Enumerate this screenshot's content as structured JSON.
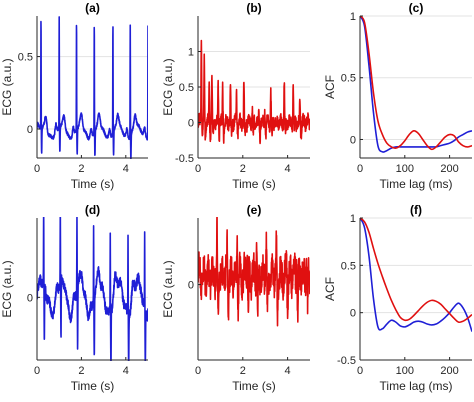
{
  "chart_data": [
    {
      "panel": "a",
      "type": "line",
      "title": "(a)",
      "xlabel": "Time (s)",
      "ylabel": "ECG (a.u.)",
      "xlim": [
        0,
        5
      ],
      "ylim": [
        -0.2,
        0.78
      ],
      "xticks": [
        0,
        2,
        4
      ],
      "xticklabels": [
        "0",
        "2",
        "4"
      ],
      "yticks": [
        0,
        0.5
      ],
      "yticklabels": [
        "0",
        "0.5"
      ],
      "grid": "horizontal",
      "series": [
        {
          "color": "#1f1fd6",
          "signal": "periodic-ecg",
          "beats": [
            0.18,
            1.0,
            1.78,
            2.58,
            3.42,
            4.2,
            5.0
          ],
          "peak": 0.78,
          "trough": -0.17,
          "baseline": -0.02,
          "noise": 0.015
        }
      ]
    },
    {
      "panel": "b",
      "type": "line",
      "title": "(b)",
      "xlabel": "Time (s)",
      "ylabel": "ECG (a.u.)",
      "xlim": [
        0,
        5
      ],
      "ylim": [
        -0.5,
        1.5
      ],
      "xticks": [
        0,
        2,
        4
      ],
      "xticklabels": [
        "0",
        "2",
        "4"
      ],
      "yticks": [
        -0.5,
        0,
        0.5,
        1
      ],
      "yticklabels": [
        "-0.5",
        "0",
        "0.5",
        "1"
      ],
      "grid": "horizontal",
      "series": [
        {
          "color": "#e01010",
          "signal": "irregular-spikes",
          "peaks": [
            [
              0.15,
              1.28
            ],
            [
              0.28,
              0.88
            ],
            [
              0.5,
              0.48
            ],
            [
              0.62,
              0.7
            ],
            [
              0.9,
              0.5
            ],
            [
              1.1,
              0.5
            ],
            [
              1.45,
              0.55
            ],
            [
              1.72,
              0.4
            ],
            [
              2.05,
              0.6
            ],
            [
              2.42,
              0.2
            ],
            [
              2.72,
              0.12
            ],
            [
              2.98,
              0.16
            ],
            [
              3.25,
              0.42
            ],
            [
              3.85,
              0.55
            ],
            [
              4.25,
              0.48
            ],
            [
              4.55,
              0.3
            ]
          ],
          "trough": -0.38,
          "baseline": 0.0,
          "noise": 0.06
        }
      ]
    },
    {
      "panel": "c",
      "type": "line",
      "title": "(c)",
      "xlabel": "Time lag (ms)",
      "ylabel": "ACF",
      "xlim": [
        0,
        250
      ],
      "ylim": [
        -0.15,
        1.0
      ],
      "xticks": [
        0,
        100,
        200
      ],
      "xticklabels": [
        "0",
        "100",
        "200"
      ],
      "yticks": [
        0,
        0.5,
        1
      ],
      "yticklabels": [
        "0",
        "0.5",
        "1"
      ],
      "grid": "horizontal",
      "series": [
        {
          "color": "#1f1fd6",
          "x": [
            0,
            10,
            20,
            30,
            40,
            50,
            60,
            70,
            80,
            90,
            100,
            110,
            120,
            130,
            140,
            150,
            160,
            170,
            180,
            190,
            200,
            210,
            220,
            230,
            240,
            250
          ],
          "y": [
            1.0,
            0.92,
            0.6,
            0.22,
            -0.05,
            -0.1,
            -0.09,
            -0.07,
            -0.06,
            -0.06,
            -0.06,
            -0.06,
            -0.06,
            -0.06,
            -0.06,
            -0.06,
            -0.06,
            -0.06,
            -0.05,
            -0.04,
            -0.03,
            -0.01,
            0.02,
            0.04,
            0.06,
            0.07
          ]
        },
        {
          "color": "#e01010",
          "x": [
            0,
            10,
            20,
            30,
            40,
            50,
            60,
            70,
            80,
            90,
            100,
            110,
            120,
            130,
            140,
            150,
            160,
            170,
            180,
            190,
            200,
            210,
            220,
            230,
            240,
            250
          ],
          "y": [
            1.0,
            0.95,
            0.7,
            0.38,
            0.15,
            0.04,
            -0.03,
            -0.06,
            -0.07,
            -0.05,
            -0.01,
            0.04,
            0.07,
            0.05,
            0.0,
            -0.05,
            -0.08,
            -0.06,
            -0.02,
            0.02,
            0.04,
            0.03,
            -0.02,
            -0.05,
            -0.06,
            -0.05
          ]
        }
      ]
    },
    {
      "panel": "d",
      "type": "line",
      "title": "(d)",
      "xlabel": "Time (s)",
      "ylabel": "ECG (a.u.)",
      "xlim": [
        0,
        5
      ],
      "ylim": [
        -0.75,
        0.95
      ],
      "xticks": [
        0,
        2,
        4
      ],
      "xticklabels": [
        "0",
        "2",
        "4"
      ],
      "yticks": [
        0
      ],
      "yticklabels": [
        "0"
      ],
      "grid": "horizontal",
      "series": [
        {
          "color": "#1f1fd6",
          "signal": "periodic-ecg",
          "beats": [
            0.3,
            1.05,
            1.8,
            2.55,
            3.3,
            4.1,
            4.85
          ],
          "peak": 0.9,
          "trough": -0.7,
          "baseline": 0.0,
          "noise": 0.08
        }
      ]
    },
    {
      "panel": "e",
      "type": "line",
      "title": "(e)",
      "xlabel": "Time (s)",
      "ylabel": "ECG (a.u.)",
      "xlim": [
        0,
        5
      ],
      "ylim": [
        -0.85,
        0.75
      ],
      "xticks": [
        0,
        2,
        4
      ],
      "xticklabels": [
        "0",
        "2",
        "4"
      ],
      "yticks": [
        0
      ],
      "yticklabels": [
        "0"
      ],
      "grid": "horizontal",
      "series": [
        {
          "color": "#e01010",
          "signal": "irregular-spikes",
          "peaks": [
            [
              0.85,
              0.65
            ],
            [
              1.3,
              0.5
            ],
            [
              1.75,
              0.45
            ],
            [
              2.2,
              0.42
            ],
            [
              2.62,
              0.4
            ],
            [
              3.05,
              0.45
            ],
            [
              3.5,
              0.38
            ],
            [
              3.95,
              0.3
            ],
            [
              4.4,
              0.35
            ],
            [
              4.85,
              0.2
            ]
          ],
          "trough": -0.78,
          "baseline": 0.1,
          "noise": 0.12
        }
      ]
    },
    {
      "panel": "f",
      "type": "line",
      "title": "(f)",
      "xlabel": "Time lag (ms)",
      "ylabel": "ACF",
      "xlim": [
        0,
        250
      ],
      "ylim": [
        -0.5,
        1.0
      ],
      "xticks": [
        0,
        100,
        200
      ],
      "xticklabels": [
        "0",
        "100",
        "200"
      ],
      "yticks": [
        -0.5,
        0,
        0.5,
        1
      ],
      "yticklabels": [
        "-0.5",
        "0",
        "0.5",
        "1"
      ],
      "grid": "horizontal",
      "series": [
        {
          "color": "#1f1fd6",
          "x": [
            0,
            10,
            20,
            30,
            40,
            50,
            60,
            70,
            80,
            90,
            100,
            110,
            120,
            130,
            140,
            150,
            160,
            170,
            180,
            190,
            200,
            210,
            220,
            230,
            240,
            250
          ],
          "y": [
            1.0,
            0.9,
            0.6,
            0.15,
            -0.15,
            -0.17,
            -0.12,
            -0.08,
            -0.1,
            -0.14,
            -0.15,
            -0.13,
            -0.1,
            -0.09,
            -0.1,
            -0.12,
            -0.13,
            -0.12,
            -0.09,
            -0.05,
            0.0,
            0.06,
            0.1,
            0.05,
            -0.05,
            -0.2
          ]
        },
        {
          "color": "#e01010",
          "x": [
            0,
            10,
            20,
            30,
            40,
            50,
            60,
            70,
            80,
            90,
            100,
            110,
            120,
            130,
            140,
            150,
            160,
            170,
            180,
            190,
            200,
            210,
            220,
            230,
            240,
            250
          ],
          "y": [
            1.0,
            0.96,
            0.85,
            0.68,
            0.52,
            0.38,
            0.25,
            0.13,
            0.03,
            -0.05,
            -0.08,
            -0.07,
            -0.03,
            0.02,
            0.07,
            0.11,
            0.13,
            0.12,
            0.09,
            0.04,
            -0.01,
            -0.06,
            -0.1,
            -0.09,
            -0.06,
            -0.02
          ]
        }
      ]
    }
  ]
}
